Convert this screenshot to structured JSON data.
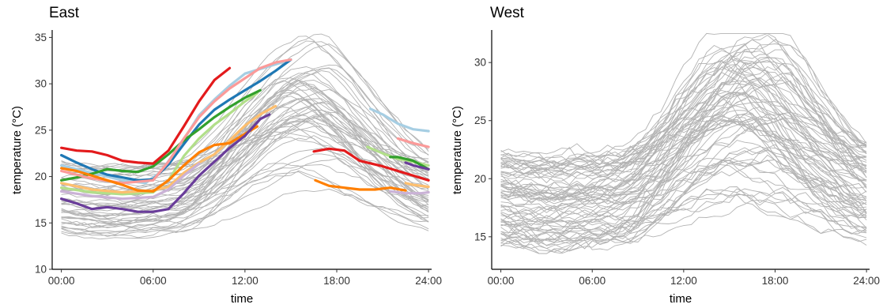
{
  "chart_data": [
    {
      "type": "line",
      "title": "East",
      "xlabel": "time",
      "ylabel": "temperature (°C)",
      "x_ticks": [
        "00:00",
        "06:00",
        "12:00",
        "18:00",
        "24:00"
      ],
      "x_tick_hours": [
        0,
        6,
        12,
        18,
        24
      ],
      "xlim_hours": [
        -0.6,
        24.2
      ],
      "y_ticks": [
        10,
        15,
        20,
        25,
        30,
        35
      ],
      "ylim": [
        10,
        35.8
      ],
      "grid": false,
      "legend": "none",
      "background_color": "#b3b3b3",
      "background_series_count": 55,
      "background_seed": 7,
      "highlight_series": [
        {
          "color": "#a6cee3",
          "segments": [
            [
              [
                0,
                21.2
              ],
              [
                2,
                20.4
              ],
              [
                4,
                19.6
              ],
              [
                5.5,
                19.3
              ],
              [
                6.5,
                20.5
              ],
              [
                8,
                24
              ],
              [
                9,
                26.6
              ],
              [
                10,
                28.3
              ],
              [
                11,
                29.8
              ],
              [
                12,
                31.1
              ],
              [
                13,
                31.6
              ],
              [
                15,
                32.6
              ]
            ],
            [
              [
                20.2,
                27.3
              ],
              [
                21,
                26.7
              ],
              [
                22,
                25.7
              ],
              [
                23,
                25.1
              ],
              [
                24,
                24.9
              ]
            ]
          ]
        },
        {
          "color": "#1f78b4",
          "segments": [
            [
              [
                0,
                22.3
              ],
              [
                1,
                21.5
              ],
              [
                2,
                20.8
              ],
              [
                3,
                20.2
              ],
              [
                4,
                19.9
              ],
              [
                5,
                19.6
              ],
              [
                6,
                19.7
              ],
              [
                7,
                21.3
              ],
              [
                8,
                23.5
              ],
              [
                9,
                25.6
              ],
              [
                10,
                27.2
              ],
              [
                11,
                28.3
              ],
              [
                12,
                29.3
              ],
              [
                13,
                30.3
              ],
              [
                14,
                31.4
              ],
              [
                15,
                32.6
              ]
            ]
          ]
        },
        {
          "color": "#b2df8a",
          "segments": [
            [
              [
                0,
                18.8
              ],
              [
                2,
                18.3
              ],
              [
                4,
                18.1
              ],
              [
                6,
                18.3
              ],
              [
                7,
                19.6
              ],
              [
                8,
                22.2
              ],
              [
                9,
                24.1
              ],
              [
                10,
                25.6
              ],
              [
                11,
                26.8
              ],
              [
                12,
                28.1
              ],
              [
                12.8,
                29
              ]
            ],
            [
              [
                20,
                23.2
              ],
              [
                21,
                22.5
              ],
              [
                22,
                21.9
              ],
              [
                23,
                21.6
              ],
              [
                24,
                21.2
              ]
            ]
          ]
        },
        {
          "color": "#33a02c",
          "segments": [
            [
              [
                0,
                19.6
              ],
              [
                1,
                19.9
              ],
              [
                2,
                20.3
              ],
              [
                3,
                20.8
              ],
              [
                4,
                20.6
              ],
              [
                5,
                20.5
              ],
              [
                6,
                21.1
              ],
              [
                7,
                22.4
              ],
              [
                8,
                23.9
              ],
              [
                9,
                25.1
              ],
              [
                10,
                26.4
              ],
              [
                11,
                27.5
              ],
              [
                12,
                28.5
              ],
              [
                13,
                29.3
              ]
            ],
            [
              [
                21.5,
                22.1
              ],
              [
                22,
                22.1
              ],
              [
                23,
                21.7
              ],
              [
                24,
                20.8
              ]
            ]
          ]
        },
        {
          "color": "#fb9a99",
          "segments": [
            [
              [
                0,
                20.6
              ],
              [
                2,
                19.8
              ],
              [
                4,
                19.3
              ],
              [
                6,
                19.6
              ],
              [
                7,
                21.6
              ],
              [
                8,
                24.1
              ],
              [
                9,
                26.4
              ],
              [
                10,
                28.1
              ],
              [
                11,
                29.5
              ],
              [
                12,
                30.6
              ],
              [
                13,
                31.7
              ],
              [
                14,
                32.3
              ],
              [
                15,
                32.6
              ]
            ],
            [
              [
                22,
                24.1
              ],
              [
                23,
                23.6
              ],
              [
                24,
                23.2
              ]
            ]
          ]
        },
        {
          "color": "#e31a1c",
          "segments": [
            [
              [
                0,
                23.1
              ],
              [
                1,
                22.8
              ],
              [
                2,
                22.7
              ],
              [
                3,
                22.3
              ],
              [
                4,
                21.7
              ],
              [
                5,
                21.5
              ],
              [
                6,
                21.4
              ],
              [
                7,
                22.8
              ],
              [
                8,
                25.4
              ],
              [
                9,
                28.1
              ],
              [
                10,
                30.4
              ],
              [
                11,
                31.7
              ]
            ],
            [
              [
                16.5,
                22.7
              ],
              [
                17.5,
                23
              ],
              [
                18.5,
                22.8
              ],
              [
                19.5,
                21.7
              ],
              [
                21,
                21.1
              ],
              [
                22,
                20.6
              ],
              [
                23,
                20.1
              ],
              [
                24,
                19.6
              ]
            ]
          ]
        },
        {
          "color": "#fdbf6f",
          "segments": [
            [
              [
                0,
                19.3
              ],
              [
                2,
                18.6
              ],
              [
                4,
                18.3
              ],
              [
                6,
                18.5
              ],
              [
                7,
                18.9
              ],
              [
                8,
                20.4
              ],
              [
                9,
                21.5
              ],
              [
                10,
                22.4
              ],
              [
                11,
                23.9
              ],
              [
                12,
                25.5
              ],
              [
                13,
                26.7
              ],
              [
                14,
                27.6
              ]
            ],
            [
              [
                22.5,
                19.3
              ],
              [
                23,
                19.1
              ],
              [
                24,
                18.9
              ]
            ]
          ]
        },
        {
          "color": "#ff7f00",
          "segments": [
            [
              [
                0,
                20.9
              ],
              [
                1,
                20.6
              ],
              [
                2,
                20.1
              ],
              [
                3,
                19.6
              ],
              [
                4,
                19.1
              ],
              [
                5,
                18.5
              ],
              [
                6,
                18.4
              ],
              [
                7,
                19.6
              ],
              [
                8,
                21.2
              ],
              [
                9,
                22.6
              ],
              [
                10,
                23.4
              ],
              [
                11,
                23.6
              ],
              [
                12,
                24.6
              ],
              [
                12.8,
                25.4
              ]
            ],
            [
              [
                16.6,
                19.6
              ],
              [
                17.5,
                19
              ],
              [
                18.5,
                18.8
              ],
              [
                19.5,
                18.6
              ],
              [
                20.5,
                18.6
              ],
              [
                21.5,
                18.8
              ],
              [
                22.5,
                18.5
              ]
            ]
          ]
        },
        {
          "color": "#cab2d6",
          "segments": [
            [
              [
                0,
                18.4
              ],
              [
                2,
                17.9
              ],
              [
                4,
                17.6
              ],
              [
                6,
                17.8
              ],
              [
                7,
                18.6
              ],
              [
                8,
                20.1
              ],
              [
                9,
                21.4
              ]
            ],
            [
              [
                21.5,
                18.4
              ],
              [
                22.5,
                18.2
              ],
              [
                23.5,
                18.2
              ],
              [
                24,
                18.3
              ]
            ]
          ]
        },
        {
          "color": "#6a3d9a",
          "segments": [
            [
              [
                0,
                17.6
              ],
              [
                1,
                17.1
              ],
              [
                2,
                16.5
              ],
              [
                3,
                16.7
              ],
              [
                4,
                16.5
              ],
              [
                5,
                16.2
              ],
              [
                6,
                16.2
              ],
              [
                7,
                16.5
              ],
              [
                8,
                18.2
              ],
              [
                9,
                20.1
              ],
              [
                10,
                21.6
              ],
              [
                11,
                23.1
              ],
              [
                12,
                24.4
              ],
              [
                13,
                26.2
              ],
              [
                13.6,
                26.7
              ]
            ],
            [
              [
                22.5,
                21.5
              ],
              [
                23,
                21.2
              ],
              [
                24,
                20.8
              ]
            ]
          ]
        }
      ]
    },
    {
      "type": "line",
      "title": "West",
      "xlabel": "time",
      "ylabel": "temperature (°C)",
      "x_ticks": [
        "00:00",
        "06:00",
        "12:00",
        "18:00",
        "24:00"
      ],
      "x_tick_hours": [
        0,
        6,
        12,
        18,
        24
      ],
      "xlim_hours": [
        -0.6,
        24.2
      ],
      "y_ticks": [
        15,
        20,
        25,
        30
      ],
      "ylim": [
        12.2,
        32.8
      ],
      "grid": false,
      "legend": "none",
      "background_color": "#b3b3b3",
      "background_series_count": 75,
      "background_seed": 19,
      "highlight_series": []
    }
  ]
}
